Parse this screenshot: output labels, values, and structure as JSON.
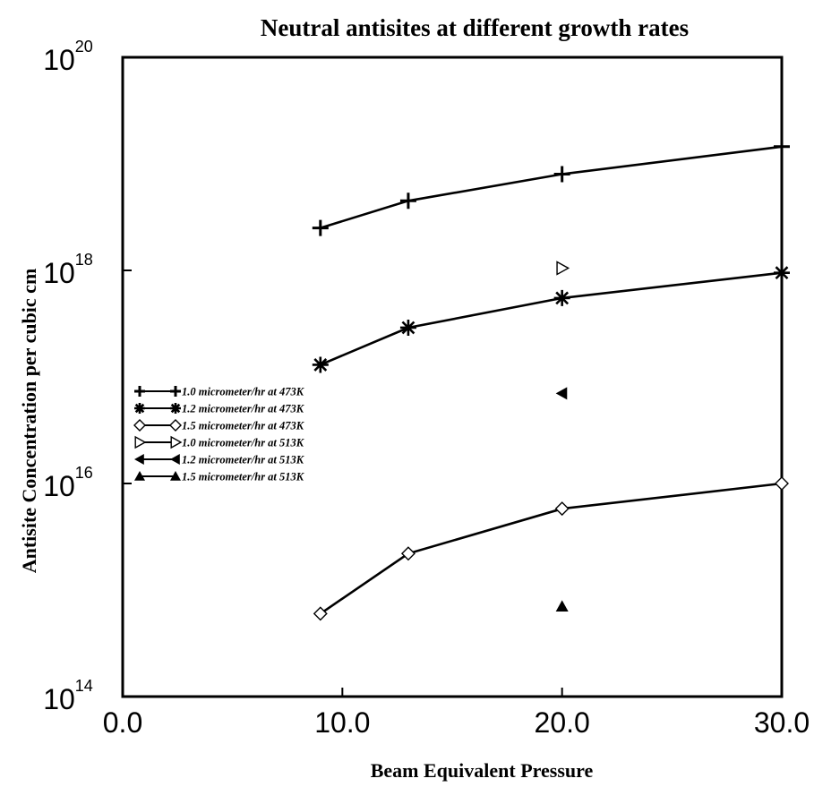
{
  "chart_data": {
    "type": "line",
    "title": "Neutral antisites at different growth rates",
    "xlabel": "Beam Equivalent Pressure",
    "ylabel": "Antisite Concentration per cubic cm",
    "x_scale": "linear",
    "y_scale": "log",
    "xlim": [
      0,
      30
    ],
    "ylim": [
      100000000000000.0,
      1e+20
    ],
    "x_ticks": [
      "0.0",
      "10.0",
      "20.0",
      "30.0"
    ],
    "y_ticks": [
      {
        "base": "10",
        "exp": "14"
      },
      {
        "base": "10",
        "exp": "16"
      },
      {
        "base": "10",
        "exp": "18"
      },
      {
        "base": "10",
        "exp": "20"
      }
    ],
    "grid": false,
    "legend_position": "left-middle",
    "series": [
      {
        "name": "1.0 micrometer/hr at 473K",
        "marker": "plus",
        "color": "#000000",
        "points": [
          [
            9,
            2.5e+18
          ],
          [
            13,
            4.5e+18
          ],
          [
            20,
            8e+18
          ],
          [
            30,
            1.45e+19
          ]
        ]
      },
      {
        "name": "1.2 micrometer/hr at 473K",
        "marker": "asterisk",
        "color": "#000000",
        "points": [
          [
            9,
            1.3e+17
          ],
          [
            13,
            2.9e+17
          ],
          [
            20,
            5.5e+17
          ],
          [
            30,
            9.5e+17
          ]
        ]
      },
      {
        "name": "1.5 micrometer/hr at 473K",
        "marker": "diamond-open",
        "color": "#000000",
        "points": [
          [
            9,
            600000000000000.0
          ],
          [
            13,
            2200000000000000.0
          ],
          [
            20,
            5800000000000000.0
          ],
          [
            30,
            1e+16
          ]
        ]
      },
      {
        "name": "1.0 micrometer/hr at 513K",
        "marker": "triangle-right-open",
        "color": "#000000",
        "points": [
          [
            20,
            1.05e+18
          ]
        ]
      },
      {
        "name": "1.2 micrometer/hr at 513K",
        "marker": "triangle-left-filled",
        "color": "#000000",
        "points": [
          [
            20,
            7e+16
          ]
        ]
      },
      {
        "name": "1.5 micrometer/hr at 513K",
        "marker": "triangle-up-filled",
        "color": "#000000",
        "points": [
          [
            20,
            700000000000000.0
          ]
        ]
      }
    ]
  }
}
